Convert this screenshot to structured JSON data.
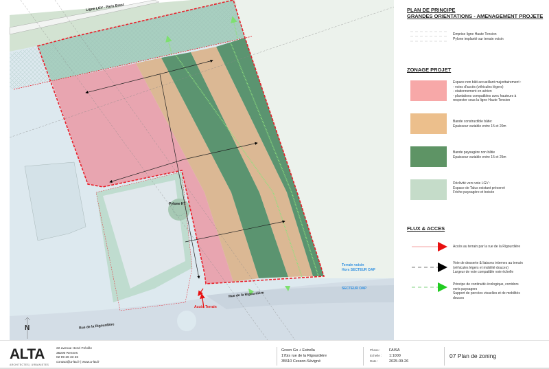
{
  "map": {
    "labels": {
      "railway": "Ligne LGV - Paris Brest",
      "pylon": "Pylone HT",
      "access": "Accès Terrain",
      "street_east": "Rue de la Rigourdière",
      "street_west": "Rue de la Rigourdière",
      "neighbour_line1": "Terrain voisin",
      "neighbour_line2": "Hors SECTEUR OAP",
      "sector": "SECTEUR OAP",
      "north": "N"
    },
    "colors": {
      "pink": "#e8a5b0",
      "orange": "#dbb894",
      "green": "#5b9470",
      "talus": "#a8cfc0",
      "boundary": "#e8202a",
      "road": "#d3dde6",
      "background": "#dde9ef",
      "sector_label": "#2f8fe0"
    }
  },
  "legend": {
    "title_line1": "PLAN DE PRINCIPE",
    "title_line2": "GRANDES ORIENTATIONS - AMENAGEMENT PROJETE",
    "hv_line": "Emprise ligne Haute Tension\nPylone implanté sur terrain voisin",
    "zonage_title": "ZONAGE PROJET",
    "zones": [
      {
        "color": "#f7a8a8",
        "text": "Espace non bâti accueillant majoritairement :\n- voies d'accès (véhicules légers)\n- stationnement en aérien\n- plantations compatibles avec hauteurs à\nrespecter sous la ligne Haute Tension"
      },
      {
        "color": "#ecbf8c",
        "text": "Bande constructible bâtie:\nEpaisseur variable entre 15 et 20m"
      },
      {
        "color": "#5e9465",
        "text": "Bande paysagère non bâtie\nEpaisseur variable entre 15 et 25m"
      },
      {
        "color": "#c5dcc9",
        "text": "Déclivité vers voie LGV :\nEspace de Talus existant préservé\nFriche paysagère et boisée"
      }
    ],
    "flux_title": "FLUX & ACCES",
    "flux": [
      {
        "color": "#e81010",
        "text": "Accès au terrain par la rue de la Rigourdière"
      },
      {
        "color": "#000000",
        "text": "Voie de desserte & liaisons internes au terrain\n(véhicules légers et mobilité douces)\nLargeur de voie compatible voie échelle"
      },
      {
        "color": "#22cc22",
        "text": "Principe de continuité écologique, corridors\nverts paysagers\nSupport de percées visuelles et de mobilités\ndouces"
      }
    ]
  },
  "footer": {
    "logo": "ALTA",
    "logo_sub": "ARCHITECTES | URBANISTES",
    "address": [
      "22 avenue Henri Fréville",
      "35200 Rennes",
      "02 99 26 33 26",
      "contact@a-lta.fr  |  www.a-lta.fr"
    ],
    "project": [
      "Green Go + Estrella",
      "17bis rue de la Rigourdière",
      "35510 Cesson-Sévigné"
    ],
    "meta_labels": [
      "Phase :",
      "Echelle :",
      "Date :"
    ],
    "meta_values": [
      "FAISA",
      "1:1000",
      "2025-09-26"
    ],
    "sheet_title": "07 Plan de zoning"
  }
}
